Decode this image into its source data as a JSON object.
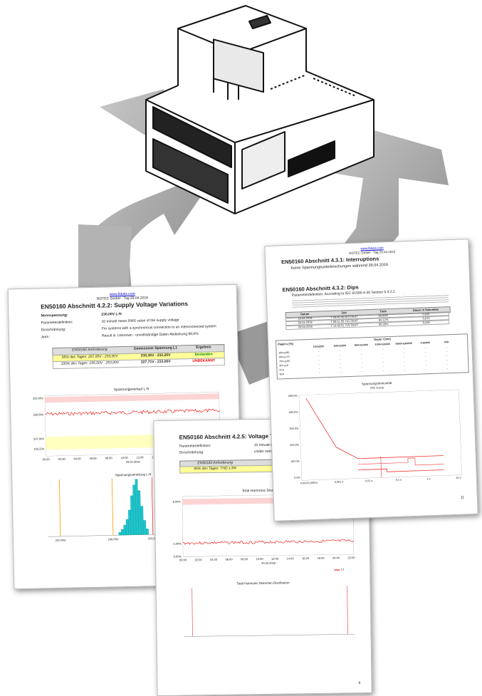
{
  "page_left": {
    "url": "www.fiduks.com",
    "company": "ROTEC GmbH - Tag 29.04.2016",
    "title": "EN50160 Abschnitt 4.2.2: Supply Voltage Variations",
    "fields": [
      [
        "Nennspannung:",
        "230,00V L-N"
      ],
      [
        "Parameterdefinition:",
        "10 minute mean RMS value of the supply voltage"
      ],
      [
        "Einschränkung:",
        "For systems with a synchronous connection to an interconnected system"
      ],
      [
        "Anm.:",
        "Result is: Unknown - unvollständige Daten Abdeckung 98,6%"
      ]
    ],
    "table": {
      "header": [
        "EN50160 Anforderung",
        "Gemessene Spannung L1",
        "Ergebnis"
      ],
      "rows": [
        [
          "95% des Tages: 207,00V - 253,00V",
          "230,36V - 232,26V",
          "bestanden"
        ],
        [
          "100% des Tages: 195,50V - 253,00V",
          "227,71V - 233,06V",
          "UNBEKANNT"
        ]
      ]
    },
    "chart1": {
      "title": "Spannungsverlauf L-N",
      "yticks": [
        "250,00V",
        "230,00V",
        "207,00V",
        "195,50V"
      ],
      "xticks": [
        "00:00",
        "02:00",
        "04:00",
        "06:00",
        "08:00",
        "10:00",
        "12:00",
        "14:00",
        "16:00",
        "18:00",
        "20:00",
        "22:00"
      ],
      "xlabel": "29.04.2016"
    },
    "chart2": {
      "title": "Spannungsverteilung L-N",
      "xticks": [
        "207,00V",
        "230,00V",
        "254,31V"
      ]
    }
  },
  "page_middle": {
    "url": "www.fiduks.com",
    "company": "ROTEC GmbH - Tag 29",
    "title": "EN50160 Abschnitt 4.2.5: Voltage THD",
    "fields": [
      [
        "Parameterdefinition:",
        "10 minute mean RM"
      ],
      [
        "Einschränkung:",
        "Under normal op"
      ]
    ],
    "table": {
      "header": [
        "EN50160 Anforderung"
      ],
      "rows": [
        [
          "95% des Tages: THD ≤ 8%"
        ]
      ]
    },
    "chart1": {
      "title": "Total Harmonic Distortion",
      "yticks": [
        "8,00%",
        "2,00%",
        "0,00%"
      ],
      "xticks": [
        "00:00",
        "02:00",
        "04:00",
        "06:00",
        "08:00",
        "10:00",
        "12:00",
        "14:00",
        "16:00",
        "18:00",
        "20:00",
        "22:00"
      ],
      "xlabel": "29.04.2016",
      "legend": "L1"
    },
    "chart2": {
      "title": "Total Harmonic Distortion Distribution"
    },
    "page_number": "9"
  },
  "page_right": {
    "url": "www.fiduks.com",
    "company": "ROTEC GmbH - Tag 29.04.2016",
    "title": "EN50160 Abschnitt 4.3.1: Interruptions",
    "subtitle": "Keine Spannungsunterbrechungen während 29.04.2016",
    "title2": "EN50160 Abschnitt 4.3.2: Dips",
    "param": "Parameterdefinition: According to IEC 61000-4-30 Section 5.4.2.1",
    "dips": {
      "header": [
        "Datum",
        "Zeit",
        "Tiefe",
        "Dauer in Sekunden"
      ],
      "rows": [
        [
          "29.04.2016",
          "T 09:49:40.903 CEST",
          "90,69%",
          "0,030"
        ],
        [
          "29.04.2016",
          "T 09:51:50.741 CEST",
          "84,12%",
          "0,070"
        ],
        [
          "29.04.2016",
          "T 13:42:51.715 CEST",
          "90,28%",
          "0,030"
        ]
      ]
    },
    "matrix": {
      "corner": "Pegel u [%]",
      "span": "Dauer t [ms]",
      "columns": [
        "10≤t≤200",
        "200<t≤500",
        "500<t≤1000",
        "1000<t≤5000",
        "5000<t≤60000",
        "t>60000",
        "N/A"
      ],
      "rows": [
        "90>u≥80",
        "80>u≥70",
        "70>u≥40",
        "40>u≥5",
        "5>u",
        "N/A"
      ],
      "cell": "-"
    },
    "chart": {
      "title": "Spannungsimmunität",
      "subtitle": "ITIC Curve",
      "yticks": [
        "500,0%",
        "400,0%",
        "300,0%",
        "200,0%",
        "100,0%",
        "0,0%"
      ],
      "xticks": [
        "0,001/0,0001s",
        "0,001 s",
        "0,01 s",
        "0,1 s",
        "1 s",
        "10 s"
      ]
    },
    "page_number": "11"
  }
}
